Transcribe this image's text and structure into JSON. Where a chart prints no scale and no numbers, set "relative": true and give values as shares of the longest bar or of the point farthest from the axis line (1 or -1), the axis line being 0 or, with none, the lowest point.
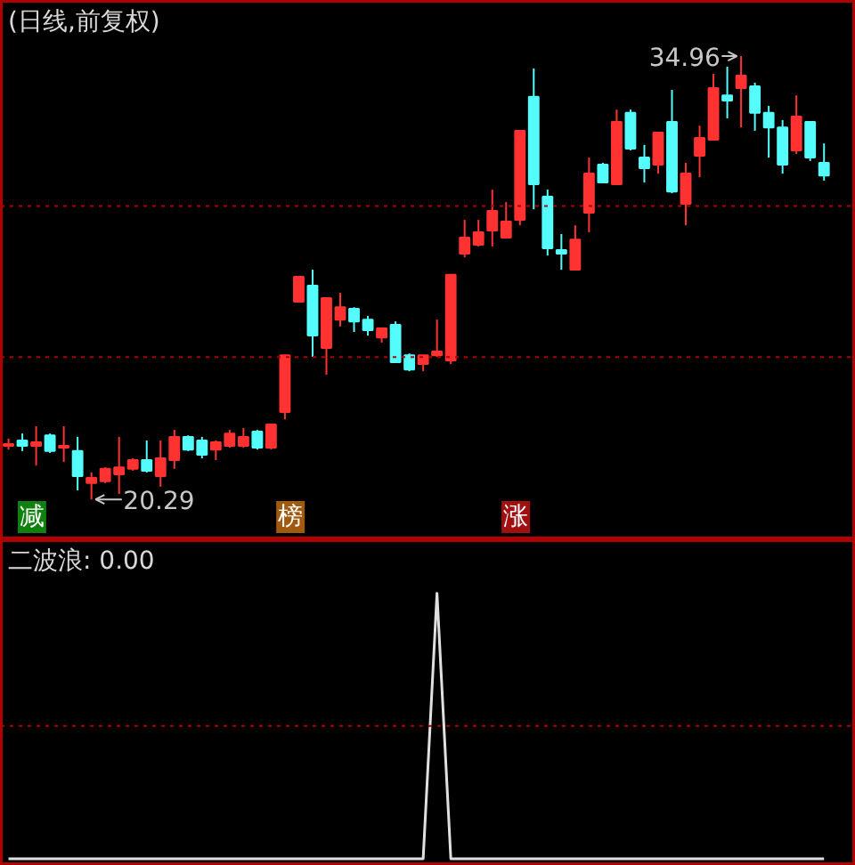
{
  "chart_data": [
    {
      "type": "candlestick",
      "title": "(日线,前复权)",
      "categories": [
        null,
        null,
        null,
        null,
        null,
        null,
        null,
        null,
        null,
        null,
        null,
        null,
        null,
        null,
        null,
        null,
        null,
        null,
        null,
        null,
        null,
        null,
        null,
        null,
        null,
        null,
        null,
        null,
        null,
        null,
        null,
        null,
        null,
        null,
        null,
        null,
        null,
        null,
        null,
        null,
        null,
        null,
        null,
        null,
        null,
        null,
        null,
        null,
        null,
        null,
        null,
        null,
        null,
        null,
        null,
        null,
        null,
        null,
        null,
        null
      ],
      "ohlc": [
        [
          22.06,
          22.3,
          21.94,
          22.12
        ],
        [
          22.24,
          22.47,
          21.89,
          22.06
        ],
        [
          22.06,
          22.71,
          21.41,
          22.18
        ],
        [
          22.41,
          22.47,
          21.83,
          21.89
        ],
        [
          22.0,
          22.71,
          21.53,
          22.06
        ],
        [
          21.89,
          22.36,
          20.59,
          21.06
        ],
        [
          20.83,
          21.18,
          20.29,
          21.0
        ],
        [
          20.89,
          21.35,
          20.83,
          21.3
        ],
        [
          21.12,
          22.36,
          20.47,
          21.35
        ],
        [
          21.3,
          21.65,
          21.24,
          21.59
        ],
        [
          21.59,
          22.24,
          21.18,
          21.24
        ],
        [
          21.06,
          22.24,
          20.71,
          21.65
        ],
        [
          21.59,
          22.59,
          21.3,
          22.36
        ],
        [
          22.36,
          22.41,
          21.89,
          21.94
        ],
        [
          22.24,
          22.36,
          21.65,
          21.77
        ],
        [
          21.94,
          22.24,
          21.59,
          22.18
        ],
        [
          22.06,
          22.59,
          22.0,
          22.47
        ],
        [
          22.06,
          22.65,
          22.0,
          22.36
        ],
        [
          22.53,
          22.59,
          21.94,
          22.0
        ],
        [
          22.0,
          22.77,
          21.94,
          22.77
        ],
        [
          23.18,
          25.06,
          22.94,
          25.06
        ],
        [
          26.83,
          27.66,
          26.83,
          27.66
        ],
        [
          27.36,
          27.89,
          25.01,
          25.71
        ],
        [
          25.3,
          26.95,
          24.42,
          26.95
        ],
        [
          26.24,
          27.13,
          26.01,
          26.65
        ],
        [
          26.6,
          26.65,
          25.83,
          26.18
        ],
        [
          26.24,
          26.36,
          25.71,
          25.89
        ],
        [
          25.65,
          25.95,
          25.48,
          25.95
        ],
        [
          26.07,
          26.18,
          24.83,
          24.83
        ],
        [
          25.06,
          25.12,
          24.53,
          24.59
        ],
        [
          24.77,
          25.06,
          24.53,
          25.06
        ],
        [
          25.06,
          26.24,
          25.01,
          25.18
        ],
        [
          24.89,
          27.72,
          24.77,
          27.72
        ],
        [
          28.42,
          29.54,
          28.3,
          28.95
        ],
        [
          28.72,
          29.54,
          28.66,
          29.13
        ],
        [
          29.19,
          30.54,
          28.66,
          29.84
        ],
        [
          28.95,
          30.13,
          28.95,
          29.48
        ],
        [
          29.54,
          32.49,
          29.36,
          32.49
        ],
        [
          33.61,
          34.55,
          29.89,
          30.72
        ],
        [
          30.31,
          30.54,
          28.36,
          28.6
        ],
        [
          28.54,
          29.07,
          27.89,
          28.42
        ],
        [
          27.89,
          29.36,
          27.89,
          28.89
        ],
        [
          29.78,
          31.6,
          29.13,
          31.07
        ],
        [
          31.37,
          31.43,
          30.78,
          30.78
        ],
        [
          30.72,
          33.19,
          30.72,
          32.78
        ],
        [
          33.08,
          33.19,
          31.84,
          31.9
        ],
        [
          31.6,
          32.02,
          30.78,
          31.25
        ],
        [
          31.37,
          32.43,
          31.07,
          32.43
        ],
        [
          32.78,
          33.84,
          30.42,
          30.48
        ],
        [
          30.07,
          31.43,
          29.36,
          31.07
        ],
        [
          31.66,
          32.66,
          30.95,
          32.25
        ],
        [
          32.19,
          34.37,
          32.19,
          33.9
        ],
        [
          33.66,
          34.61,
          32.9,
          33.49
        ],
        [
          33.9,
          34.96,
          32.6,
          34.31
        ],
        [
          33.96,
          34.08,
          32.49,
          33.08
        ],
        [
          33.08,
          33.31,
          31.6,
          32.6
        ],
        [
          32.6,
          32.84,
          31.07,
          31.37
        ],
        [
          31.84,
          33.66,
          31.72,
          32.96
        ],
        [
          32.78,
          32.78,
          31.49,
          31.6
        ],
        [
          31.43,
          32.07,
          30.84,
          31.01
        ]
      ],
      "colors": [
        "#ff3232",
        "#54fcfc",
        "#ff3232",
        "#54fcfc",
        "#ff3232",
        "#54fcfc",
        "#ff3232",
        "#ff3232",
        "#ff3232",
        "#ff3232",
        "#54fcfc",
        "#ff3232",
        "#ff3232",
        "#54fcfc",
        "#54fcfc",
        "#ff3232",
        "#ff3232",
        "#ff3232",
        "#54fcfc",
        "#ff3232",
        "#ff3232",
        "#ff3232",
        "#54fcfc",
        "#ff3232",
        "#ff3232",
        "#54fcfc",
        "#54fcfc",
        "#ff3232",
        "#54fcfc",
        "#54fcfc",
        "#ff3232",
        "#ff3232",
        "#ff3232",
        "#ff3232",
        "#ff3232",
        "#ff3232",
        "#ff3232",
        "#ff3232",
        "#54fcfc",
        "#54fcfc",
        "#54fcfc",
        "#ff3232",
        "#ff3232",
        "#54fcfc",
        "#ff3232",
        "#54fcfc",
        "#54fcfc",
        "#ff3232",
        "#54fcfc",
        "#ff3232",
        "#ff3232",
        "#ff3232",
        "#54fcfc",
        "#ff3232",
        "#54fcfc",
        "#54fcfc",
        "#54fcfc",
        "#ff3232",
        "#54fcfc",
        "#54fcfc"
      ],
      "annotations": [
        "34.96",
        "20.29",
        "减",
        "榜",
        "涨"
      ],
      "ref_lines": [
        {
          "axis": "y",
          "value": 25,
          "color": "#b00000",
          "line_style": "dotted"
        },
        {
          "axis": "y",
          "value": 30,
          "color": "#b00000",
          "line_style": "dotted"
        }
      ],
      "tick_labels": false,
      "grid": false
    },
    {
      "type": "line",
      "title": "二波浪: 0.00",
      "relative": true,
      "categories": [
        null,
        null,
        null,
        null,
        null,
        null,
        null,
        null,
        null,
        null,
        null,
        null,
        null,
        null,
        null,
        null,
        null,
        null,
        null,
        null,
        null,
        null,
        null,
        null,
        null,
        null,
        null,
        null,
        null,
        null,
        null,
        null,
        null,
        null,
        null,
        null,
        null,
        null,
        null,
        null,
        null,
        null,
        null,
        null,
        null,
        null,
        null,
        null,
        null,
        null,
        null,
        null,
        null,
        null,
        null,
        null,
        null,
        null,
        null,
        null
      ],
      "series": [
        {
          "color": "#e0e0e0",
          "values": [
            0,
            0,
            0,
            0,
            0,
            0,
            0,
            0,
            0,
            0,
            0,
            0,
            0,
            0,
            0,
            0,
            0,
            0,
            0,
            0,
            0,
            0,
            0,
            0,
            0,
            0,
            0,
            0,
            0,
            0,
            0,
            1,
            0,
            0,
            0,
            0,
            0,
            0,
            0,
            0,
            0,
            0,
            0,
            0,
            0,
            0,
            0,
            0,
            0,
            0,
            0,
            0,
            0,
            0,
            0,
            0,
            0,
            0,
            0,
            0
          ]
        }
      ],
      "ref_lines": [
        {
          "axis": "y",
          "value": 0.5,
          "color": "#b00000",
          "line_style": "dotted"
        }
      ],
      "marker": "none",
      "line_style": "solid",
      "grid": false
    }
  ]
}
